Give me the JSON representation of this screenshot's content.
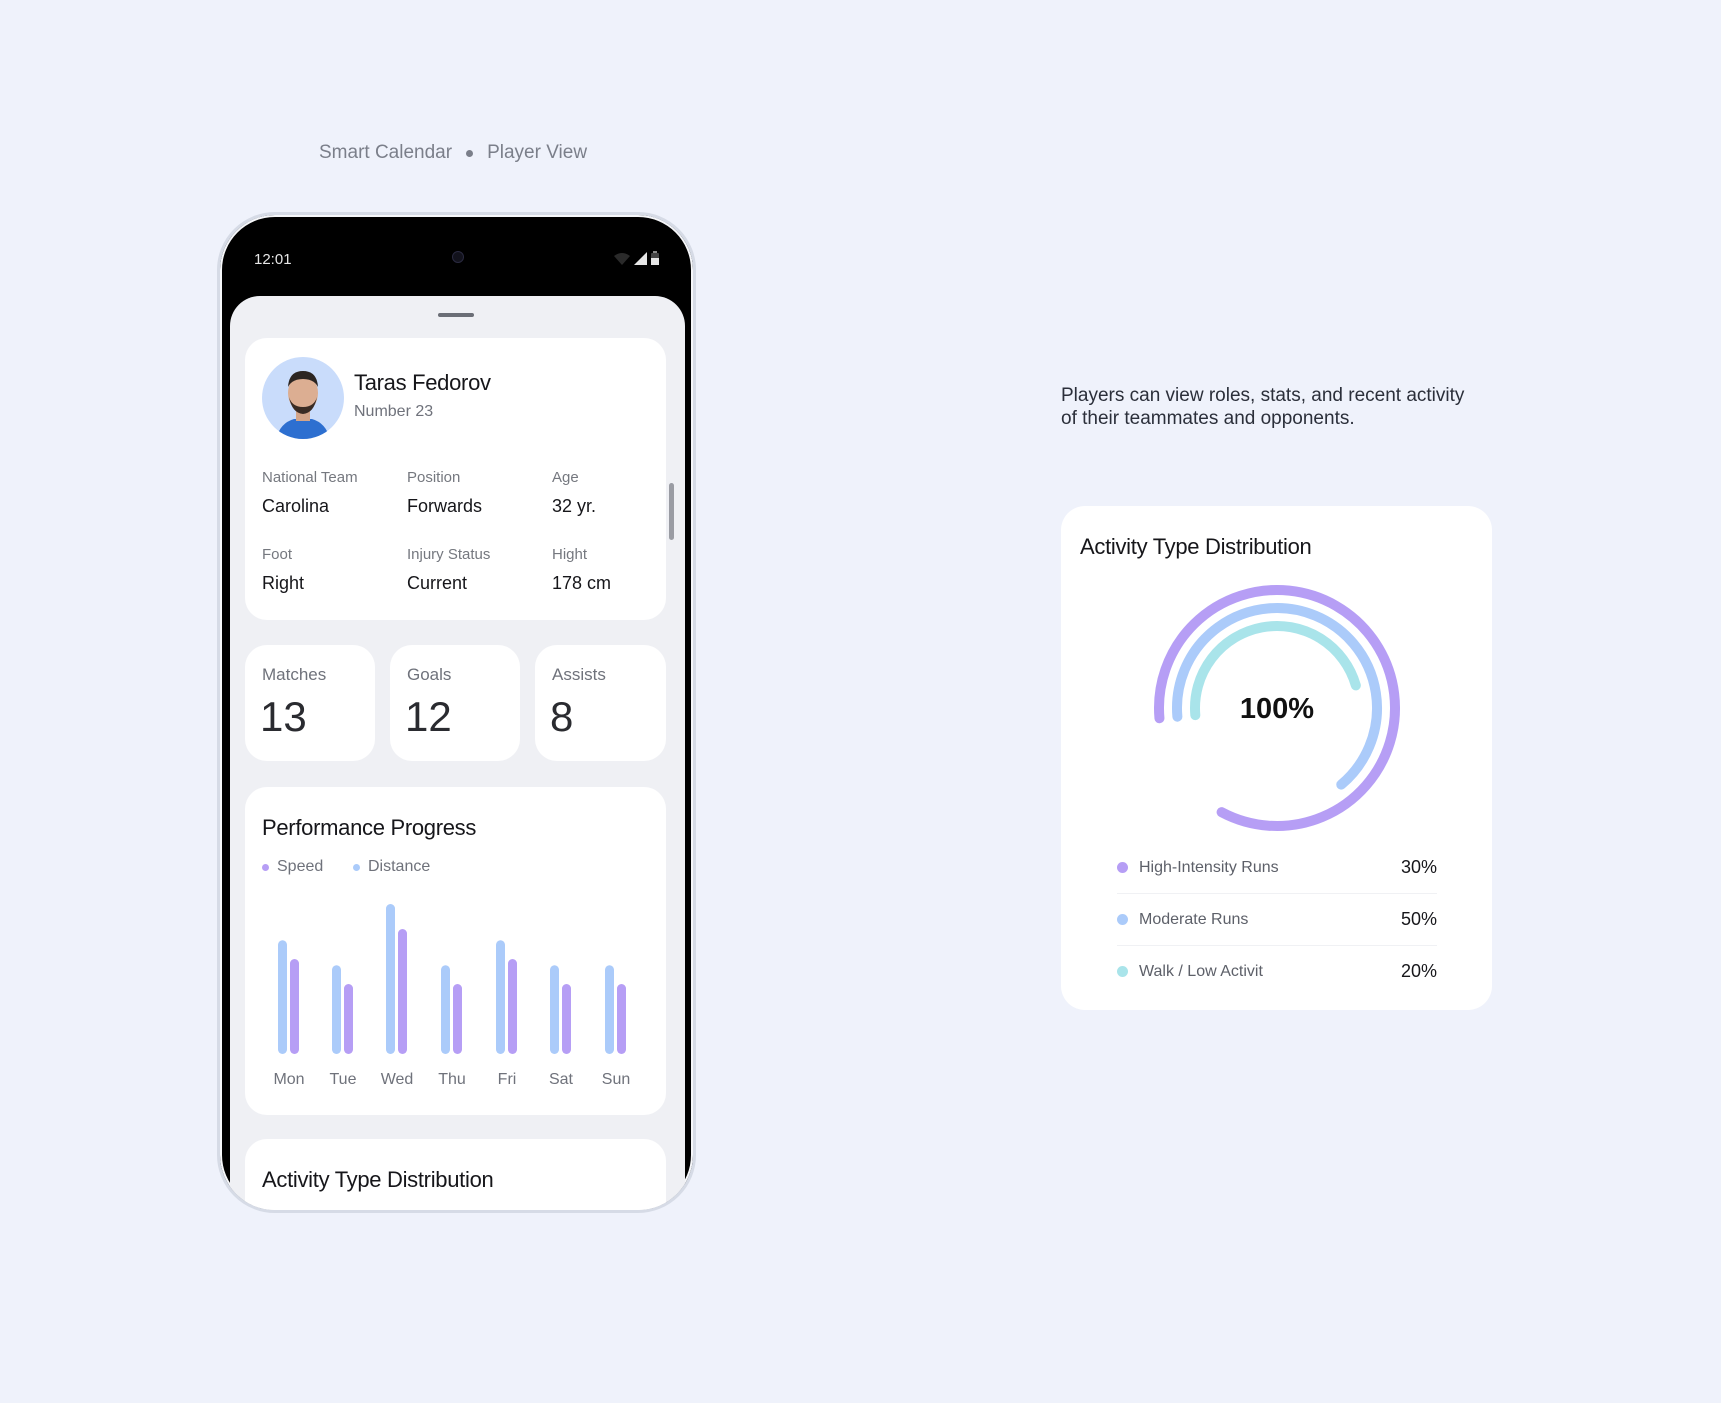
{
  "header": {
    "left": "Smart Calendar",
    "right": "Player View"
  },
  "phone": {
    "status_time": "12:01",
    "profile": {
      "name": "Taras Fedorov",
      "number": "Number 23",
      "fields": [
        {
          "label": "National Team",
          "value": "Carolina"
        },
        {
          "label": "Position",
          "value": "Forwards"
        },
        {
          "label": "Age",
          "value": "32 yr."
        },
        {
          "label": "Foot",
          "value": "Right"
        },
        {
          "label": "Injury Status",
          "value": "Current"
        },
        {
          "label": "Hight",
          "value": "178 cm"
        }
      ]
    },
    "stats": [
      {
        "label": "Matches",
        "value": "13"
      },
      {
        "label": "Goals",
        "value": "12"
      },
      {
        "label": "Assists",
        "value": "8"
      }
    ],
    "performance_title": "Performance Progress",
    "activity_title": "Activity Type Distribution"
  },
  "description": "Players can view roles, stats, and recent activity of their teammates and opponents.",
  "colors": {
    "speed": "#b69ef5",
    "distance": "#abcbfa",
    "walk": "#a9e4ea",
    "background": "#eff2fb"
  },
  "chart_data": [
    {
      "type": "bar",
      "title": "Performance Progress",
      "categories": [
        "Mon",
        "Tue",
        "Wed",
        "Thu",
        "Fri",
        "Sat",
        "Sun"
      ],
      "series": [
        {
          "name": "Speed",
          "values": [
            7.6,
            5.6,
            10,
            5.6,
            7.6,
            5.6,
            5.6
          ]
        },
        {
          "name": "Distance",
          "values": [
            9.1,
            7.1,
            12,
            7.1,
            9.1,
            7.1,
            7.1
          ]
        }
      ],
      "ylim": [
        0,
        12
      ],
      "grid": false,
      "legend": "top-left"
    },
    {
      "type": "pie",
      "title": "Activity Type Distribution",
      "center_label": "100%",
      "slices": [
        {
          "name": "High-Intensity Runs",
          "value": 30,
          "label": "30%"
        },
        {
          "name": "Moderate Runs",
          "value": 50,
          "label": "50%"
        },
        {
          "name": "Walk / Low Activit",
          "value": 20,
          "label": "20%"
        }
      ],
      "legend": "bottom"
    }
  ]
}
